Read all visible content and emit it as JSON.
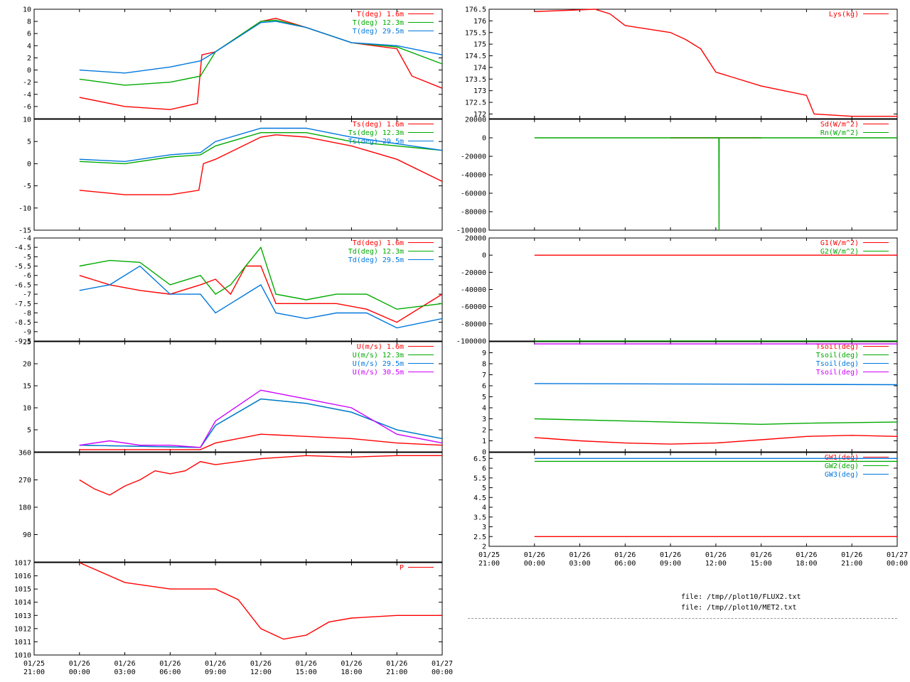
{
  "time_axis": {
    "start_hours": -3,
    "end_hours": 24,
    "ticks": [
      {
        "date": "01/25",
        "time": "21:00"
      },
      {
        "date": "01/26",
        "time": "00:00"
      },
      {
        "date": "01/26",
        "time": "03:00"
      },
      {
        "date": "01/26",
        "time": "06:00"
      },
      {
        "date": "01/26",
        "time": "09:00"
      },
      {
        "date": "01/26",
        "time": "12:00"
      },
      {
        "date": "01/26",
        "time": "15:00"
      },
      {
        "date": "01/26",
        "time": "18:00"
      },
      {
        "date": "01/26",
        "time": "21:00"
      },
      {
        "date": "01/27",
        "time": "00:00"
      }
    ]
  },
  "files": [
    "file: /tmp//plot10/FLUX2.txt",
    "file: /tmp//plot10/MET2.txt"
  ],
  "chart_data": [
    {
      "id": "temp",
      "type": "line",
      "ylim": [
        -8,
        10
      ],
      "yticks": [
        "-6",
        "-4",
        "-2",
        "0",
        "2",
        "4",
        "6",
        "8",
        "10"
      ],
      "series": [
        {
          "name": "T(deg)  1.6m",
          "color": "#ff0000",
          "x": [
            0,
            3,
            6,
            7.8,
            8.1,
            9,
            12,
            13,
            15,
            18,
            21,
            22,
            24
          ],
          "y": [
            -4.5,
            -6,
            -6.5,
            -5.5,
            2.5,
            3,
            8,
            8.5,
            7,
            4.5,
            3.5,
            -1,
            -3
          ]
        },
        {
          "name": "T(deg) 12.3m",
          "color": "#00aa00",
          "x": [
            0,
            3,
            6,
            8,
            9,
            12,
            13,
            15,
            18,
            21,
            24
          ],
          "y": [
            -1.5,
            -2.5,
            -2,
            -1,
            3,
            8,
            8.2,
            7,
            4.5,
            3.8,
            1
          ]
        },
        {
          "name": "T(deg) 29.5m",
          "color": "#0077dd",
          "x": [
            0,
            3,
            6,
            8,
            9,
            12,
            13,
            15,
            18,
            21,
            24
          ],
          "y": [
            0,
            -0.5,
            0.5,
            1.5,
            3,
            7.8,
            8,
            7,
            4.5,
            4,
            2.5
          ]
        }
      ]
    },
    {
      "id": "sonic_temp",
      "type": "line",
      "ylim": [
        -15,
        10
      ],
      "yticks": [
        "-15",
        "-10",
        "-5",
        "0",
        "5",
        "10"
      ],
      "series": [
        {
          "name": "Ts(deg)  1.6m",
          "color": "#ff0000",
          "x": [
            0,
            3,
            6,
            7.9,
            8.2,
            9,
            12,
            13,
            15,
            18,
            21,
            24
          ],
          "y": [
            -6,
            -7,
            -7,
            -6,
            0,
            1,
            6,
            6.5,
            6,
            4,
            1,
            -4
          ]
        },
        {
          "name": "Ts(deg) 12.3m",
          "color": "#00aa00",
          "x": [
            0,
            3,
            6,
            8,
            9,
            12,
            15,
            18,
            21,
            24
          ],
          "y": [
            0.5,
            0,
            1.5,
            2,
            4,
            7,
            7,
            5,
            4,
            3
          ]
        },
        {
          "name": "Ts(deg) 29.5m",
          "color": "#0077dd",
          "x": [
            0,
            3,
            6,
            8,
            9,
            12,
            15,
            18,
            21,
            24
          ],
          "y": [
            1,
            0.5,
            2,
            2.5,
            5,
            8,
            8,
            6,
            4.5,
            3
          ]
        }
      ]
    },
    {
      "id": "dewpoint",
      "type": "line",
      "ylim": [
        -9.5,
        -4
      ],
      "yticks": [
        "-9.5",
        "-9",
        "-8.5",
        "-8",
        "-7.5",
        "-7",
        "-6.5",
        "-6",
        "-5.5",
        "-5",
        "-4.5",
        "-4"
      ],
      "series": [
        {
          "name": "Td(deg)  1.6m",
          "color": "#ff0000",
          "x": [
            0,
            2,
            4,
            6,
            8,
            9,
            10,
            11,
            12,
            13,
            15,
            17,
            19,
            21,
            24
          ],
          "y": [
            -6,
            -6.5,
            -6.8,
            -7,
            -6.5,
            -6.2,
            -7,
            -5.5,
            -5.5,
            -7.5,
            -7.5,
            -7.5,
            -7.8,
            -8.5,
            -7
          ]
        },
        {
          "name": "Td(deg) 12.3m",
          "color": "#00aa00",
          "x": [
            0,
            2,
            4,
            6,
            8,
            9,
            10,
            11,
            12,
            13,
            15,
            17,
            19,
            21,
            24
          ],
          "y": [
            -5.5,
            -5.2,
            -5.3,
            -6.5,
            -6,
            -7,
            -6.5,
            -5.5,
            -4.5,
            -7,
            -7.3,
            -7,
            -7,
            -7.8,
            -7.5
          ]
        },
        {
          "name": "Td(deg) 29.5m",
          "color": "#0077dd",
          "x": [
            0,
            2,
            4,
            6,
            8,
            9,
            10,
            11,
            12,
            13,
            15,
            17,
            19,
            21,
            24
          ],
          "y": [
            -6.8,
            -6.5,
            -5.5,
            -7,
            -7,
            -8,
            -7.5,
            -7,
            -6.5,
            -8,
            -8.3,
            -8,
            -8,
            -8.8,
            -8.3
          ]
        }
      ]
    },
    {
      "id": "wind_speed",
      "type": "line",
      "ylim": [
        0,
        25
      ],
      "yticks": [
        "5",
        "10",
        "15",
        "20",
        "25"
      ],
      "series": [
        {
          "name": "U(m/s)  1.6m",
          "color": "#ff0000",
          "x": [
            0,
            8,
            9,
            12,
            15,
            18,
            21,
            24
          ],
          "y": [
            0.5,
            0.5,
            2,
            4,
            3.5,
            3,
            2,
            1.5
          ]
        },
        {
          "name": "U(m/s) 12.3m",
          "color": "#00aa00",
          "x": [
            0,
            8,
            9,
            12,
            15,
            18,
            21,
            24
          ],
          "y": [
            1.5,
            1,
            6,
            12,
            11,
            9,
            5,
            3
          ]
        },
        {
          "name": "U(m/s) 29.5m",
          "color": "#0077dd",
          "x": [
            0,
            8,
            9,
            12,
            15,
            18,
            21,
            24
          ],
          "y": [
            1.5,
            1,
            6,
            12,
            11,
            9,
            5,
            3
          ]
        },
        {
          "name": "U(m/s) 30.5m",
          "color": "#cc00ff",
          "x": [
            0,
            2,
            4,
            6,
            8,
            9,
            12,
            15,
            18,
            21,
            24
          ],
          "y": [
            1.5,
            2.5,
            1.5,
            1.5,
            1,
            7,
            14,
            12,
            10,
            4,
            2
          ]
        }
      ]
    },
    {
      "id": "wind_dir",
      "type": "line",
      "ylim": [
        0,
        360
      ],
      "yticks": [
        "90",
        "180",
        "270",
        "360"
      ],
      "series": [
        {
          "name": "",
          "color": "#ff0000",
          "x": [
            0,
            1,
            2,
            3,
            4,
            5,
            6,
            7,
            8,
            9,
            12,
            15,
            18,
            21,
            24
          ],
          "y": [
            270,
            240,
            220,
            250,
            270,
            300,
            290,
            300,
            330,
            320,
            340,
            350,
            345,
            350,
            350
          ]
        }
      ]
    },
    {
      "id": "pressure",
      "type": "line",
      "ylim": [
        1010,
        1017
      ],
      "yticks": [
        "1010",
        "1011",
        "1012",
        "1013",
        "1014",
        "1015",
        "1016",
        "1017"
      ],
      "series": [
        {
          "name": "P",
          "color": "#ff0000",
          "x": [
            0,
            3,
            6,
            9,
            10.5,
            12,
            13.5,
            15,
            16.5,
            18,
            21,
            24
          ],
          "y": [
            1017,
            1015.5,
            1015,
            1015,
            1014.2,
            1012,
            1011.2,
            1011.5,
            1012.5,
            1012.8,
            1013,
            1013
          ]
        }
      ]
    },
    {
      "id": "lys",
      "type": "line",
      "ylim": [
        171.8,
        176.5
      ],
      "yticks": [
        "172",
        "172.5",
        "173",
        "173.5",
        "174",
        "174.5",
        "175",
        "175.5",
        "176",
        "176.5"
      ],
      "series": [
        {
          "name": "Lys(kg)",
          "color": "#ff0000",
          "x": [
            0,
            4,
            5,
            6,
            9,
            10,
            11,
            12,
            13,
            15,
            18,
            18.5,
            21,
            24
          ],
          "y": [
            176.4,
            176.5,
            176.3,
            175.8,
            175.5,
            175.2,
            174.8,
            173.8,
            173.6,
            173.2,
            172.8,
            172,
            171.9,
            171.9
          ]
        }
      ]
    },
    {
      "id": "radiation",
      "type": "line",
      "ylim": [
        -100000,
        20000
      ],
      "yticks": [
        "-100000",
        "-80000",
        "-60000",
        "-40000",
        "-20000",
        "0",
        "20000"
      ],
      "series": [
        {
          "name": "Sd(W/m^2)",
          "color": "#ff0000",
          "x": [
            9,
            15
          ],
          "y": [
            0,
            0
          ]
        },
        {
          "name": "Rn(W/m^2)",
          "color": "#00aa00",
          "x": [
            0,
            12.2,
            12.21,
            12.22,
            24
          ],
          "y": [
            0,
            0,
            -100000,
            0,
            0
          ]
        }
      ]
    },
    {
      "id": "ground_flux",
      "type": "line",
      "ylim": [
        -100000,
        20000
      ],
      "yticks": [
        "-100000",
        "-80000",
        "-60000",
        "-40000",
        "-20000",
        "0",
        "20000"
      ],
      "series": [
        {
          "name": "G1(W/m^2)",
          "color": "#ff0000",
          "x": [
            0,
            24
          ],
          "y": [
            0,
            0
          ]
        },
        {
          "name": "G2(W/m^2)",
          "color": "#00aa00",
          "x": [
            0,
            24
          ],
          "y": [
            -100000,
            -100000
          ]
        }
      ]
    },
    {
      "id": "soil_temp",
      "type": "line",
      "ylim": [
        0,
        10
      ],
      "yticks": [
        "0",
        "1",
        "2",
        "3",
        "4",
        "5",
        "6",
        "7",
        "8",
        "9"
      ],
      "series": [
        {
          "name": "Tsoil(deg)",
          "color": "#ff0000",
          "x": [
            0,
            3,
            6,
            9,
            12,
            15,
            18,
            21,
            24
          ],
          "y": [
            1.3,
            1,
            0.8,
            0.7,
            0.8,
            1.1,
            1.4,
            1.5,
            1.4
          ]
        },
        {
          "name": "Tsoil(deg)",
          "color": "#00aa00",
          "x": [
            0,
            6,
            12,
            15,
            18,
            24
          ],
          "y": [
            3,
            2.8,
            2.6,
            2.5,
            2.6,
            2.7
          ]
        },
        {
          "name": "Tsoil(deg)",
          "color": "#0077dd",
          "x": [
            0,
            24
          ],
          "y": [
            6.2,
            6.1
          ]
        },
        {
          "name": "Tsoil(deg)",
          "color": "#cc00ff",
          "x": [
            0,
            24
          ],
          "y": [
            9.8,
            9.8
          ]
        }
      ]
    },
    {
      "id": "groundwater",
      "type": "line",
      "ylim": [
        2,
        6.8
      ],
      "yticks": [
        "2",
        "2.5",
        "3",
        "3.5",
        "4",
        "4.5",
        "5",
        "5.5",
        "6",
        "6.5"
      ],
      "series": [
        {
          "name": "GW1(deg)",
          "color": "#ff0000",
          "x": [
            0,
            24
          ],
          "y": [
            2.5,
            2.5
          ]
        },
        {
          "name": "GW2(deg)",
          "color": "#00aa00",
          "x": [
            0,
            24
          ],
          "y": [
            6.35,
            6.35
          ]
        },
        {
          "name": "GW3(deg)",
          "color": "#0077dd",
          "x": [
            0,
            24
          ],
          "y": [
            6.5,
            6.5
          ]
        }
      ]
    }
  ]
}
